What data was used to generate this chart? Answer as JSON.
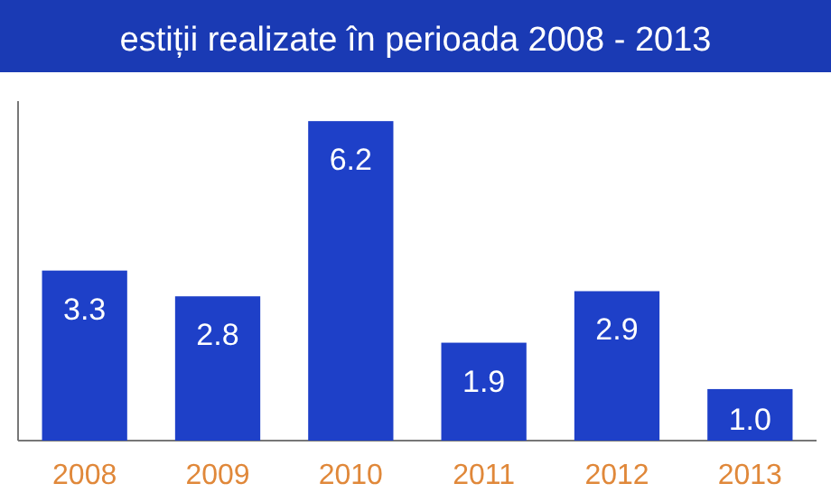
{
  "chart_data": {
    "type": "bar",
    "title": "estiții realizate în perioada 2008 - 2013",
    "categories": [
      "2008",
      "2009",
      "2010",
      "2011",
      "2012",
      "2013"
    ],
    "values": [
      3.3,
      2.8,
      6.2,
      1.9,
      2.9,
      1.0
    ],
    "color": "#1e40c8",
    "value_labels": [
      "3.3",
      "2.8",
      "6.2",
      "1.9",
      "2.9",
      "1.0"
    ]
  }
}
